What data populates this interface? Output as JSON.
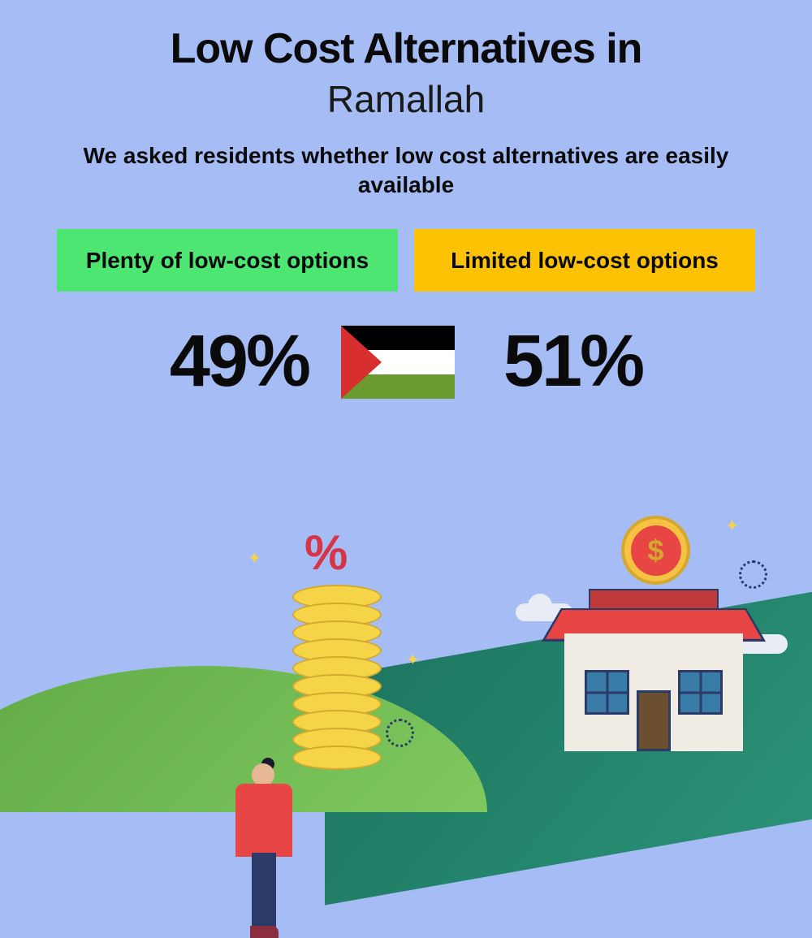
{
  "header": {
    "title_line1": "Low Cost Alternatives in",
    "city": "Ramallah",
    "subtitle": "We asked residents whether low cost alternatives are easily available"
  },
  "survey": {
    "type": "two-option-comparison",
    "options": [
      {
        "label": "Plenty of low-cost options",
        "value": "49%",
        "box_color": "#4ee673"
      },
      {
        "label": "Limited low-cost options",
        "value": "51%",
        "box_color": "#fcc203"
      }
    ]
  },
  "flag": {
    "country": "Palestine",
    "stripes": [
      "#000000",
      "#ffffff",
      "#6b9b2f"
    ],
    "triangle_color": "#d82e2e"
  },
  "styling": {
    "background_color": "#a6bcf5",
    "title_fontsize": 52,
    "title_weight": 900,
    "city_fontsize": 46,
    "city_weight": 400,
    "subtitle_fontsize": 28,
    "subtitle_weight": 700,
    "box_fontsize": 28,
    "box_weight": 700,
    "percent_fontsize": 90,
    "percent_weight": 900,
    "text_color": "#0a0a0a"
  },
  "illustration": {
    "elements": [
      "person",
      "coin-stack",
      "percent-symbol",
      "house",
      "dollar-coin",
      "clouds",
      "sparkles",
      "hills"
    ],
    "percent_symbol": "%",
    "dollar_symbol": "$",
    "colors": {
      "hill_light": "#7fc95f",
      "hill_dark": "#1e7560",
      "coin_fill": "#f5d547",
      "coin_border": "#d4a82e",
      "percent_color": "#d63447",
      "person_shirt": "#e84545",
      "person_pants": "#2b3a67",
      "person_skin": "#e8b896",
      "house_wall": "#f0ece4",
      "house_roof": "#e84545",
      "house_window": "#3a7ca8",
      "house_outline": "#2b3a67",
      "dollar_coin_bg": "#f5c242",
      "dollar_inner": "#e84545",
      "cloud_color": "#e8ecf5"
    }
  }
}
